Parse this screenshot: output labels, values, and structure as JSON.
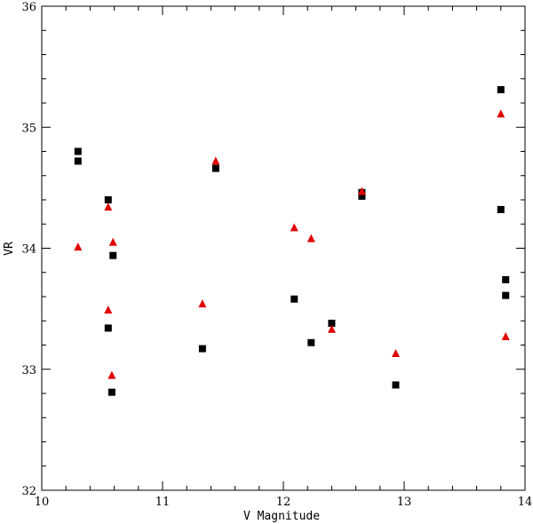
{
  "chart_data": {
    "type": "scatter",
    "xlabel": "V Magnitude",
    "ylabel": "VR",
    "xlim": [
      10,
      14
    ],
    "ylim": [
      32,
      36
    ],
    "x_ticks": [
      "10",
      "11",
      "12",
      "13",
      "14"
    ],
    "y_ticks": [
      "32",
      "33",
      "34",
      "35",
      "36"
    ],
    "grid": false,
    "series": [
      {
        "marker": "square",
        "color": "#000000",
        "points": [
          [
            10.3,
            34.8
          ],
          [
            10.3,
            34.72
          ],
          [
            10.55,
            34.4
          ],
          [
            10.59,
            33.94
          ],
          [
            10.55,
            33.34
          ],
          [
            10.58,
            32.81
          ],
          [
            11.33,
            33.17
          ],
          [
            11.44,
            34.66
          ],
          [
            12.09,
            33.58
          ],
          [
            12.23,
            33.22
          ],
          [
            12.4,
            33.38
          ],
          [
            12.65,
            34.46
          ],
          [
            12.65,
            34.43
          ],
          [
            12.93,
            32.87
          ],
          [
            13.8,
            35.31
          ],
          [
            13.8,
            34.32
          ],
          [
            13.84,
            33.74
          ],
          [
            13.84,
            33.61
          ]
        ]
      },
      {
        "marker": "triangle",
        "color": "#e00000",
        "points": [
          [
            10.3,
            34.01
          ],
          [
            10.55,
            34.34
          ],
          [
            10.59,
            34.05
          ],
          [
            10.55,
            33.49
          ],
          [
            10.58,
            32.95
          ],
          [
            11.33,
            33.54
          ],
          [
            11.44,
            34.72
          ],
          [
            12.09,
            34.17
          ],
          [
            12.23,
            34.08
          ],
          [
            12.4,
            33.33
          ],
          [
            12.65,
            34.47
          ],
          [
            12.93,
            33.13
          ],
          [
            13.8,
            35.11
          ],
          [
            13.84,
            33.27
          ]
        ]
      }
    ]
  }
}
